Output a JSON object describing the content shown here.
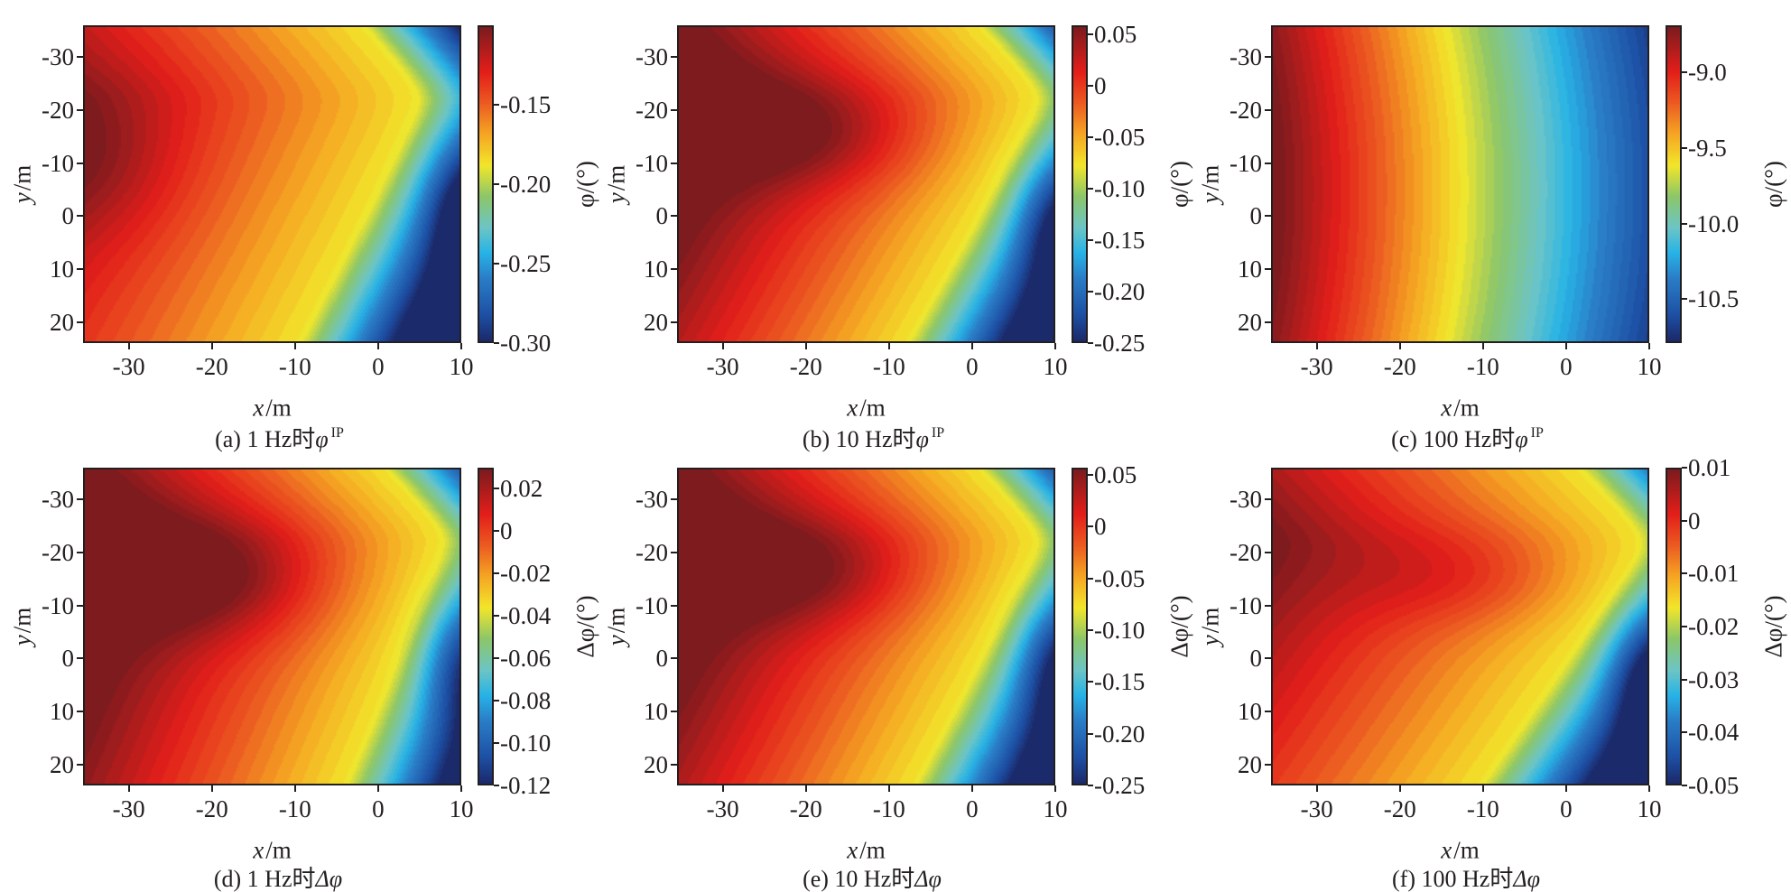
{
  "chart_data": [
    {
      "id": "a",
      "type": "heatmap",
      "caption": {
        "prefix": "(a) 1 Hz时",
        "symbol": "φ",
        "sup": "IP"
      },
      "xlabel": {
        "var": "x",
        "unit": "/m"
      },
      "ylabel": {
        "var": "y",
        "unit": "/m"
      },
      "xlim": [
        -35.5,
        10
      ],
      "ylim": [
        -36,
        24
      ],
      "xticks": [
        "-30",
        "-20",
        "-10",
        "0",
        "10"
      ],
      "xtick_values": [
        -30,
        -20,
        -10,
        0,
        10
      ],
      "yticks": [
        "-30",
        "-20",
        "-10",
        "0",
        "10",
        "20"
      ],
      "ytick_values": [
        -30,
        -20,
        -10,
        0,
        10,
        20
      ],
      "colorbar": {
        "label": "φ/(°)",
        "range": [
          -0.3,
          -0.1
        ],
        "ticks": [
          "-0.15",
          "-0.20",
          "-0.25",
          "-0.30"
        ],
        "tick_values": [
          -0.15,
          -0.2,
          -0.25,
          -0.3
        ]
      }
    },
    {
      "id": "b",
      "type": "heatmap",
      "caption": {
        "prefix": "(b) 10 Hz时",
        "symbol": "φ",
        "sup": "IP"
      },
      "xlabel": {
        "var": "x",
        "unit": "/m"
      },
      "ylabel": {
        "var": "y",
        "unit": "/m"
      },
      "xlim": [
        -35.5,
        10
      ],
      "ylim": [
        -36,
        24
      ],
      "xticks": [
        "-30",
        "-20",
        "-10",
        "0",
        "10"
      ],
      "xtick_values": [
        -30,
        -20,
        -10,
        0,
        10
      ],
      "yticks": [
        "-30",
        "-20",
        "-10",
        "0",
        "10",
        "20"
      ],
      "ytick_values": [
        -30,
        -20,
        -10,
        0,
        10,
        20
      ],
      "colorbar": {
        "label": "φ/(°)",
        "range": [
          -0.25,
          0.059
        ],
        "ticks": [
          "0.05",
          "0",
          "-0.05",
          "-0.10",
          "-0.15",
          "-0.20",
          "-0.25"
        ],
        "tick_values": [
          0.05,
          0,
          -0.05,
          -0.1,
          -0.15,
          -0.2,
          -0.25
        ]
      }
    },
    {
      "id": "c",
      "type": "heatmap",
      "caption": {
        "prefix": "(c) 100 Hz时",
        "symbol": "φ",
        "sup": "IP"
      },
      "xlabel": {
        "var": "x",
        "unit": "/m"
      },
      "ylabel": {
        "var": "y",
        "unit": "/m"
      },
      "xlim": [
        -35.5,
        10
      ],
      "ylim": [
        -36,
        24
      ],
      "xticks": [
        "-30",
        "-20",
        "-10",
        "0",
        "10"
      ],
      "xtick_values": [
        -30,
        -20,
        -10,
        0,
        10
      ],
      "yticks": [
        "-30",
        "-20",
        "-10",
        "0",
        "10",
        "20"
      ],
      "ytick_values": [
        -30,
        -20,
        -10,
        0,
        10,
        20
      ],
      "colorbar": {
        "label": "φ/(°)",
        "range": [
          -10.79,
          -8.69
        ],
        "ticks": [
          "-9.0",
          "-9.5",
          "-10.0",
          "-10.5"
        ],
        "tick_values": [
          -9.0,
          -9.5,
          -10.0,
          -10.5
        ]
      }
    },
    {
      "id": "d",
      "type": "heatmap",
      "caption": {
        "prefix": "(d) 1 Hz时",
        "symbol": "Δφ",
        "sup": ""
      },
      "xlabel": {
        "var": "x",
        "unit": "/m"
      },
      "ylabel": {
        "var": "y",
        "unit": "/m"
      },
      "xlim": [
        -35.5,
        10
      ],
      "ylim": [
        -36,
        24
      ],
      "xticks": [
        "-30",
        "-20",
        "-10",
        "0",
        "10"
      ],
      "xtick_values": [
        -30,
        -20,
        -10,
        0,
        10
      ],
      "yticks": [
        "-30",
        "-20",
        "-10",
        "0",
        "10",
        "20"
      ],
      "ytick_values": [
        -30,
        -20,
        -10,
        0,
        10,
        20
      ],
      "colorbar": {
        "label": "Δφ/(°)",
        "range": [
          -0.12,
          0.03
        ],
        "ticks": [
          "0.02",
          "0",
          "-0.02",
          "-0.04",
          "-0.06",
          "-0.08",
          "-0.10",
          "-0.12"
        ],
        "tick_values": [
          0.02,
          0,
          -0.02,
          -0.04,
          -0.06,
          -0.08,
          -0.1,
          -0.12
        ]
      }
    },
    {
      "id": "e",
      "type": "heatmap",
      "caption": {
        "prefix": "(e) 10 Hz时",
        "symbol": "Δφ",
        "sup": ""
      },
      "xlabel": {
        "var": "x",
        "unit": "/m"
      },
      "ylabel": {
        "var": "y",
        "unit": "/m"
      },
      "xlim": [
        -35.5,
        10
      ],
      "ylim": [
        -36,
        24
      ],
      "xticks": [
        "-30",
        "-20",
        "-10",
        "0",
        "10"
      ],
      "xtick_values": [
        -30,
        -20,
        -10,
        0,
        10
      ],
      "yticks": [
        "-30",
        "-20",
        "-10",
        "0",
        "10",
        "20"
      ],
      "ytick_values": [
        -30,
        -20,
        -10,
        0,
        10,
        20
      ],
      "colorbar": {
        "label": "Δφ/(°)",
        "range": [
          -0.25,
          0.057
        ],
        "ticks": [
          "0.05",
          "0",
          "-0.05",
          "-0.10",
          "-0.15",
          "-0.20",
          "-0.25"
        ],
        "tick_values": [
          0.05,
          0,
          -0.05,
          -0.1,
          -0.15,
          -0.2,
          -0.25
        ]
      }
    },
    {
      "id": "f",
      "type": "heatmap",
      "caption": {
        "prefix": "(f) 100 Hz时",
        "symbol": "Δφ",
        "sup": ""
      },
      "xlabel": {
        "var": "x",
        "unit": "/m"
      },
      "ylabel": {
        "var": "y",
        "unit": "/m"
      },
      "xlim": [
        -35.5,
        10
      ],
      "ylim": [
        -36,
        24
      ],
      "xticks": [
        "-30",
        "-20",
        "-10",
        "0",
        "10"
      ],
      "xtick_values": [
        -30,
        -20,
        -10,
        0,
        10
      ],
      "yticks": [
        "-30",
        "-20",
        "-10",
        "0",
        "10",
        "20"
      ],
      "ytick_values": [
        -30,
        -20,
        -10,
        0,
        10,
        20
      ],
      "colorbar": {
        "label": "Δφ/(°)",
        "range": [
          -0.05,
          0.01
        ],
        "ticks": [
          "0.01",
          "0",
          "-0.01",
          "-0.02",
          "-0.03",
          "-0.04",
          "-0.05"
        ],
        "tick_values": [
          0.01,
          0,
          -0.01,
          -0.02,
          -0.03,
          -0.04,
          -0.05
        ]
      }
    }
  ]
}
